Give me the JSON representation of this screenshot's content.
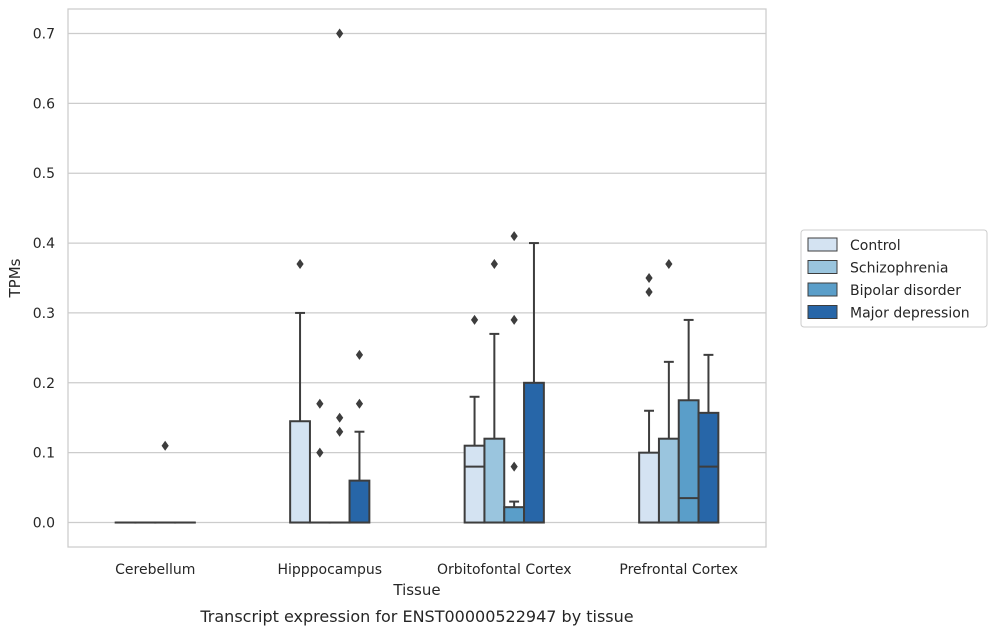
{
  "chart_data": {
    "type": "box",
    "xlabel": "Tissue",
    "ylabel": "TPMs",
    "caption": "Transcript expression for ENST00000522947 by tissue",
    "ylim": [
      -0.035,
      0.735
    ],
    "yticks": [
      "0.0",
      "0.1",
      "0.2",
      "0.3",
      "0.4",
      "0.5",
      "0.6",
      "0.7"
    ],
    "grid": "horizontal",
    "legend_position": "right",
    "categories": [
      "Cerebellum",
      "Hipppocampus",
      "Orbitofontal Cortex",
      "Prefrontal Cortex"
    ],
    "series": [
      {
        "name": "Control",
        "color": "#d4e3f2",
        "boxes": [
          {
            "q1": 0,
            "median": 0,
            "q3": 0,
            "whisker_low": 0,
            "whisker_high": 0,
            "outliers": []
          },
          {
            "q1": 0,
            "median": 0,
            "q3": 0.145,
            "whisker_low": 0,
            "whisker_high": 0.3,
            "outliers": [
              0.37
            ]
          },
          {
            "q1": 0,
            "median": 0.08,
            "q3": 0.11,
            "whisker_low": 0,
            "whisker_high": 0.18,
            "outliers": [
              0.29
            ]
          },
          {
            "q1": 0,
            "median": 0,
            "q3": 0.1,
            "whisker_low": 0,
            "whisker_high": 0.16,
            "outliers": [
              0.33,
              0.35
            ]
          }
        ]
      },
      {
        "name": "Schizophrenia",
        "color": "#9ac5de",
        "boxes": [
          {
            "q1": 0,
            "median": 0,
            "q3": 0,
            "whisker_low": 0,
            "whisker_high": 0,
            "outliers": []
          },
          {
            "q1": 0,
            "median": 0,
            "q3": 0,
            "whisker_low": 0,
            "whisker_high": 0,
            "outliers": [
              0.1,
              0.17
            ]
          },
          {
            "q1": 0,
            "median": 0,
            "q3": 0.12,
            "whisker_low": 0,
            "whisker_high": 0.27,
            "outliers": [
              0.37
            ]
          },
          {
            "q1": 0,
            "median": 0,
            "q3": 0.12,
            "whisker_low": 0,
            "whisker_high": 0.23,
            "outliers": [
              0.37
            ]
          }
        ]
      },
      {
        "name": "Bipolar disorder",
        "color": "#5a9ec9",
        "boxes": [
          {
            "q1": 0,
            "median": 0,
            "q3": 0,
            "whisker_low": 0,
            "whisker_high": 0,
            "outliers": [
              0.11
            ]
          },
          {
            "q1": 0,
            "median": 0,
            "q3": 0,
            "whisker_low": 0,
            "whisker_high": 0,
            "outliers": [
              0.13,
              0.15,
              0.7
            ]
          },
          {
            "q1": 0,
            "median": 0,
            "q3": 0.022,
            "whisker_low": 0,
            "whisker_high": 0.03,
            "outliers": [
              0.08,
              0.29,
              0.41
            ]
          },
          {
            "q1": 0,
            "median": 0.035,
            "q3": 0.175,
            "whisker_low": 0,
            "whisker_high": 0.29,
            "outliers": []
          }
        ]
      },
      {
        "name": "Major depression",
        "color": "#2766a8",
        "boxes": [
          {
            "q1": 0,
            "median": 0,
            "q3": 0,
            "whisker_low": 0,
            "whisker_high": 0,
            "outliers": []
          },
          {
            "q1": 0,
            "median": 0,
            "q3": 0.06,
            "whisker_low": 0,
            "whisker_high": 0.13,
            "outliers": [
              0.17,
              0.24
            ]
          },
          {
            "q1": 0,
            "median": 0,
            "q3": 0.2,
            "whisker_low": 0,
            "whisker_high": 0.4,
            "outliers": []
          },
          {
            "q1": 0,
            "median": 0.08,
            "q3": 0.157,
            "whisker_low": 0,
            "whisker_high": 0.24,
            "outliers": []
          }
        ]
      }
    ]
  }
}
